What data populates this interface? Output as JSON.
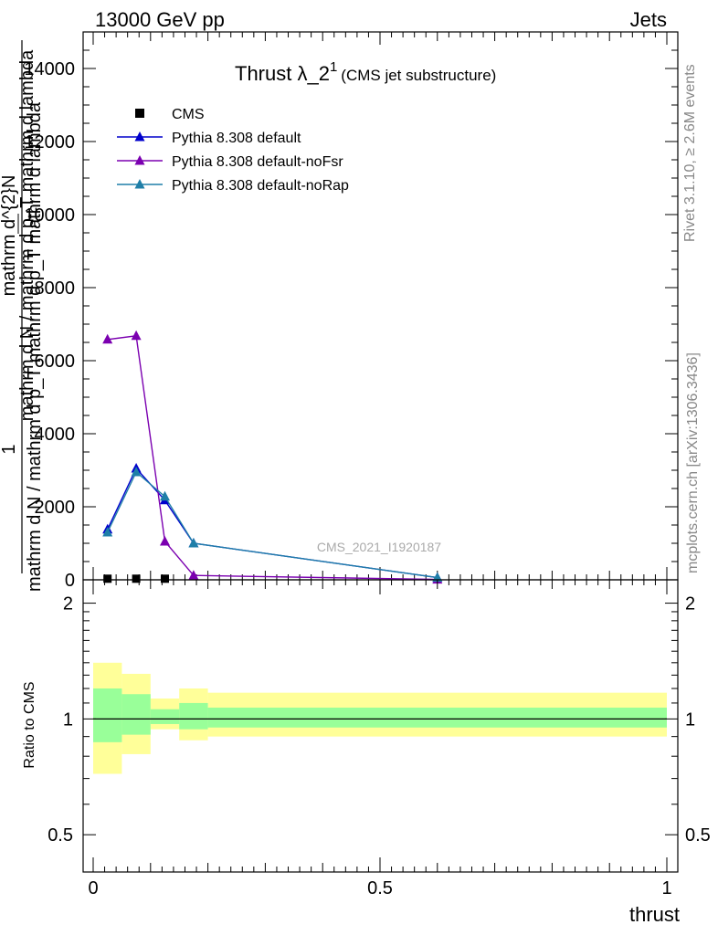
{
  "header": {
    "left": "13000 GeV pp",
    "right": "Jets"
  },
  "side": {
    "rivet": "Rivet 3.1.10, ≥ 2.6M events",
    "mcplots": "mcplots.cern.ch [arXiv:1306.3436]"
  },
  "chart_data": [
    {
      "type": "line",
      "title_main": "Thrust λ_2",
      "title_sup": "1",
      "title_sub": "(CMS jet substructure)",
      "ylabel_top": "mathrm d^{2}N",
      "ylabel_bottom": "mathrm d N / mathrm d p_T mathrm d lambda",
      "ylabel_frac_num": "1",
      "ylabel_frac_den": "mathrm d N / mathrm d p_T mathrm d p_T mathrm d lambda",
      "watermark": "CMS_2021_I1920187",
      "xlim": [
        0,
        1
      ],
      "ylim": [
        0,
        15000
      ],
      "yticks": [
        0,
        2000,
        4000,
        6000,
        8000,
        10000,
        12000,
        14000
      ],
      "ytick_labels": [
        "0",
        "2000",
        "4000",
        "6000",
        "8000",
        "10000",
        "12000",
        "14000"
      ],
      "legend_position": "top-left",
      "series": [
        {
          "name": "CMS",
          "color": "#000000",
          "marker": "square",
          "x": [
            0.025,
            0.075,
            0.125
          ],
          "y": [
            30,
            30,
            30
          ]
        },
        {
          "name": "Pythia 8.308 default",
          "color": "#0000cc",
          "marker": "triangle",
          "x": [
            0.025,
            0.075,
            0.125,
            0.175,
            0.6
          ],
          "y": [
            1380,
            3050,
            2180,
            1000,
            60
          ]
        },
        {
          "name": "Pythia 8.308 default-noFsr",
          "color": "#7b00b0",
          "marker": "triangle",
          "x": [
            0.025,
            0.075,
            0.125,
            0.175,
            0.6
          ],
          "y": [
            6580,
            6680,
            1050,
            120,
            10
          ]
        },
        {
          "name": "Pythia 8.308 default-noRap",
          "color": "#1f7fa8",
          "marker": "triangle",
          "x": [
            0.025,
            0.075,
            0.125,
            0.175,
            0.6
          ],
          "y": [
            1300,
            2950,
            2280,
            1000,
            60
          ]
        }
      ]
    },
    {
      "type": "area",
      "ylabel": "Ratio to CMS",
      "xlabel": "thrust",
      "xlim": [
        0,
        1
      ],
      "ylim": [
        0.4,
        2.3
      ],
      "log_y": true,
      "yticks": [
        0.5,
        1,
        2
      ],
      "ytick_labels": [
        "0.5",
        "1",
        "2"
      ],
      "xticks": [
        0,
        0.5,
        1
      ],
      "xtick_labels": [
        "0",
        "0.5",
        "1"
      ],
      "reference": 1,
      "bands": [
        {
          "x0": 0.0,
          "x1": 0.05,
          "yellow": [
            0.72,
            1.4
          ],
          "green": [
            0.87,
            1.2
          ]
        },
        {
          "x0": 0.05,
          "x1": 0.1,
          "yellow": [
            0.81,
            1.31
          ],
          "green": [
            0.91,
            1.16
          ]
        },
        {
          "x0": 0.1,
          "x1": 0.15,
          "yellow": [
            0.94,
            1.13
          ],
          "green": [
            0.97,
            1.06
          ]
        },
        {
          "x0": 0.15,
          "x1": 0.2,
          "yellow": [
            0.88,
            1.2
          ],
          "green": [
            0.94,
            1.1
          ]
        },
        {
          "x0": 0.2,
          "x1": 1.0,
          "yellow": [
            0.9,
            1.17
          ],
          "green": [
            0.95,
            1.07
          ]
        }
      ],
      "colors": {
        "yellow": "#ffff99",
        "green": "#99ff99"
      }
    }
  ]
}
